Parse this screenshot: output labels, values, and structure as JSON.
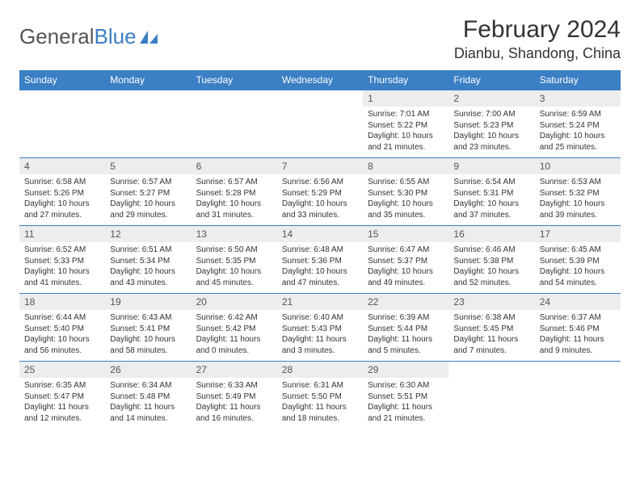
{
  "logo": {
    "text_gray": "General",
    "text_blue": "Blue"
  },
  "title": "February 2024",
  "location": "Dianbu, Shandong, China",
  "colors": {
    "header_bg": "#3b7fc4",
    "header_text": "#ffffff",
    "daynum_bg": "#eceded",
    "border": "#3b7fc4",
    "body_text": "#333333"
  },
  "day_names": [
    "Sunday",
    "Monday",
    "Tuesday",
    "Wednesday",
    "Thursday",
    "Friday",
    "Saturday"
  ],
  "weeks": [
    [
      {
        "num": "",
        "sunrise": "",
        "sunset": "",
        "daylight1": "",
        "daylight2": ""
      },
      {
        "num": "",
        "sunrise": "",
        "sunset": "",
        "daylight1": "",
        "daylight2": ""
      },
      {
        "num": "",
        "sunrise": "",
        "sunset": "",
        "daylight1": "",
        "daylight2": ""
      },
      {
        "num": "",
        "sunrise": "",
        "sunset": "",
        "daylight1": "",
        "daylight2": ""
      },
      {
        "num": "1",
        "sunrise": "Sunrise: 7:01 AM",
        "sunset": "Sunset: 5:22 PM",
        "daylight1": "Daylight: 10 hours",
        "daylight2": "and 21 minutes."
      },
      {
        "num": "2",
        "sunrise": "Sunrise: 7:00 AM",
        "sunset": "Sunset: 5:23 PM",
        "daylight1": "Daylight: 10 hours",
        "daylight2": "and 23 minutes."
      },
      {
        "num": "3",
        "sunrise": "Sunrise: 6:59 AM",
        "sunset": "Sunset: 5:24 PM",
        "daylight1": "Daylight: 10 hours",
        "daylight2": "and 25 minutes."
      }
    ],
    [
      {
        "num": "4",
        "sunrise": "Sunrise: 6:58 AM",
        "sunset": "Sunset: 5:26 PM",
        "daylight1": "Daylight: 10 hours",
        "daylight2": "and 27 minutes."
      },
      {
        "num": "5",
        "sunrise": "Sunrise: 6:57 AM",
        "sunset": "Sunset: 5:27 PM",
        "daylight1": "Daylight: 10 hours",
        "daylight2": "and 29 minutes."
      },
      {
        "num": "6",
        "sunrise": "Sunrise: 6:57 AM",
        "sunset": "Sunset: 5:28 PM",
        "daylight1": "Daylight: 10 hours",
        "daylight2": "and 31 minutes."
      },
      {
        "num": "7",
        "sunrise": "Sunrise: 6:56 AM",
        "sunset": "Sunset: 5:29 PM",
        "daylight1": "Daylight: 10 hours",
        "daylight2": "and 33 minutes."
      },
      {
        "num": "8",
        "sunrise": "Sunrise: 6:55 AM",
        "sunset": "Sunset: 5:30 PM",
        "daylight1": "Daylight: 10 hours",
        "daylight2": "and 35 minutes."
      },
      {
        "num": "9",
        "sunrise": "Sunrise: 6:54 AM",
        "sunset": "Sunset: 5:31 PM",
        "daylight1": "Daylight: 10 hours",
        "daylight2": "and 37 minutes."
      },
      {
        "num": "10",
        "sunrise": "Sunrise: 6:53 AM",
        "sunset": "Sunset: 5:32 PM",
        "daylight1": "Daylight: 10 hours",
        "daylight2": "and 39 minutes."
      }
    ],
    [
      {
        "num": "11",
        "sunrise": "Sunrise: 6:52 AM",
        "sunset": "Sunset: 5:33 PM",
        "daylight1": "Daylight: 10 hours",
        "daylight2": "and 41 minutes."
      },
      {
        "num": "12",
        "sunrise": "Sunrise: 6:51 AM",
        "sunset": "Sunset: 5:34 PM",
        "daylight1": "Daylight: 10 hours",
        "daylight2": "and 43 minutes."
      },
      {
        "num": "13",
        "sunrise": "Sunrise: 6:50 AM",
        "sunset": "Sunset: 5:35 PM",
        "daylight1": "Daylight: 10 hours",
        "daylight2": "and 45 minutes."
      },
      {
        "num": "14",
        "sunrise": "Sunrise: 6:48 AM",
        "sunset": "Sunset: 5:36 PM",
        "daylight1": "Daylight: 10 hours",
        "daylight2": "and 47 minutes."
      },
      {
        "num": "15",
        "sunrise": "Sunrise: 6:47 AM",
        "sunset": "Sunset: 5:37 PM",
        "daylight1": "Daylight: 10 hours",
        "daylight2": "and 49 minutes."
      },
      {
        "num": "16",
        "sunrise": "Sunrise: 6:46 AM",
        "sunset": "Sunset: 5:38 PM",
        "daylight1": "Daylight: 10 hours",
        "daylight2": "and 52 minutes."
      },
      {
        "num": "17",
        "sunrise": "Sunrise: 6:45 AM",
        "sunset": "Sunset: 5:39 PM",
        "daylight1": "Daylight: 10 hours",
        "daylight2": "and 54 minutes."
      }
    ],
    [
      {
        "num": "18",
        "sunrise": "Sunrise: 6:44 AM",
        "sunset": "Sunset: 5:40 PM",
        "daylight1": "Daylight: 10 hours",
        "daylight2": "and 56 minutes."
      },
      {
        "num": "19",
        "sunrise": "Sunrise: 6:43 AM",
        "sunset": "Sunset: 5:41 PM",
        "daylight1": "Daylight: 10 hours",
        "daylight2": "and 58 minutes."
      },
      {
        "num": "20",
        "sunrise": "Sunrise: 6:42 AM",
        "sunset": "Sunset: 5:42 PM",
        "daylight1": "Daylight: 11 hours",
        "daylight2": "and 0 minutes."
      },
      {
        "num": "21",
        "sunrise": "Sunrise: 6:40 AM",
        "sunset": "Sunset: 5:43 PM",
        "daylight1": "Daylight: 11 hours",
        "daylight2": "and 3 minutes."
      },
      {
        "num": "22",
        "sunrise": "Sunrise: 6:39 AM",
        "sunset": "Sunset: 5:44 PM",
        "daylight1": "Daylight: 11 hours",
        "daylight2": "and 5 minutes."
      },
      {
        "num": "23",
        "sunrise": "Sunrise: 6:38 AM",
        "sunset": "Sunset: 5:45 PM",
        "daylight1": "Daylight: 11 hours",
        "daylight2": "and 7 minutes."
      },
      {
        "num": "24",
        "sunrise": "Sunrise: 6:37 AM",
        "sunset": "Sunset: 5:46 PM",
        "daylight1": "Daylight: 11 hours",
        "daylight2": "and 9 minutes."
      }
    ],
    [
      {
        "num": "25",
        "sunrise": "Sunrise: 6:35 AM",
        "sunset": "Sunset: 5:47 PM",
        "daylight1": "Daylight: 11 hours",
        "daylight2": "and 12 minutes."
      },
      {
        "num": "26",
        "sunrise": "Sunrise: 6:34 AM",
        "sunset": "Sunset: 5:48 PM",
        "daylight1": "Daylight: 11 hours",
        "daylight2": "and 14 minutes."
      },
      {
        "num": "27",
        "sunrise": "Sunrise: 6:33 AM",
        "sunset": "Sunset: 5:49 PM",
        "daylight1": "Daylight: 11 hours",
        "daylight2": "and 16 minutes."
      },
      {
        "num": "28",
        "sunrise": "Sunrise: 6:31 AM",
        "sunset": "Sunset: 5:50 PM",
        "daylight1": "Daylight: 11 hours",
        "daylight2": "and 18 minutes."
      },
      {
        "num": "29",
        "sunrise": "Sunrise: 6:30 AM",
        "sunset": "Sunset: 5:51 PM",
        "daylight1": "Daylight: 11 hours",
        "daylight2": "and 21 minutes."
      },
      {
        "num": "",
        "sunrise": "",
        "sunset": "",
        "daylight1": "",
        "daylight2": ""
      },
      {
        "num": "",
        "sunrise": "",
        "sunset": "",
        "daylight1": "",
        "daylight2": ""
      }
    ]
  ]
}
